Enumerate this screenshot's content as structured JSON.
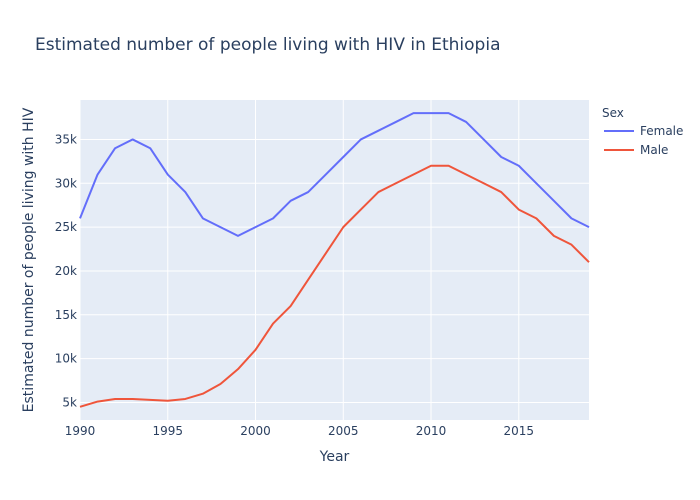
{
  "chart_data": {
    "type": "line",
    "title": "Estimated number of people living with HIV in Ethiopia",
    "xlabel": "Year",
    "ylabel": "Estimated number of people living with HIV",
    "xlim": [
      1990,
      2019
    ],
    "ylim": [
      3000,
      39500
    ],
    "x_ticks": [
      1990,
      1995,
      2000,
      2005,
      2010,
      2015
    ],
    "y_ticks": [
      5000,
      10000,
      15000,
      20000,
      25000,
      30000,
      35000
    ],
    "y_tick_labels": [
      "5k",
      "10k",
      "15k",
      "20k",
      "25k",
      "30k",
      "35k"
    ],
    "grid": true,
    "legend": {
      "title": "Sex",
      "placement": "right"
    },
    "x": [
      1990,
      1991,
      1992,
      1993,
      1994,
      1995,
      1996,
      1997,
      1998,
      1999,
      2000,
      2001,
      2002,
      2003,
      2004,
      2005,
      2006,
      2007,
      2008,
      2009,
      2010,
      2011,
      2012,
      2013,
      2014,
      2015,
      2016,
      2017,
      2018,
      2019
    ],
    "series": [
      {
        "name": "Female",
        "color": "#636efa",
        "values": [
          26000,
          31000,
          34000,
          35000,
          34000,
          31000,
          29000,
          26000,
          25000,
          24000,
          25000,
          26000,
          28000,
          29000,
          31000,
          33000,
          35000,
          36000,
          37000,
          38000,
          38000,
          38000,
          37000,
          35000,
          33000,
          32000,
          30000,
          28000,
          26000,
          25000
        ]
      },
      {
        "name": "Male",
        "color": "#ef553b",
        "values": [
          4500,
          5100,
          5400,
          5400,
          5300,
          5200,
          5400,
          6000,
          7100,
          8800,
          11000,
          14000,
          16000,
          19000,
          22000,
          25000,
          27000,
          29000,
          30000,
          31000,
          32000,
          32000,
          31000,
          30000,
          29000,
          27000,
          26000,
          24000,
          23000,
          21000
        ]
      }
    ]
  }
}
